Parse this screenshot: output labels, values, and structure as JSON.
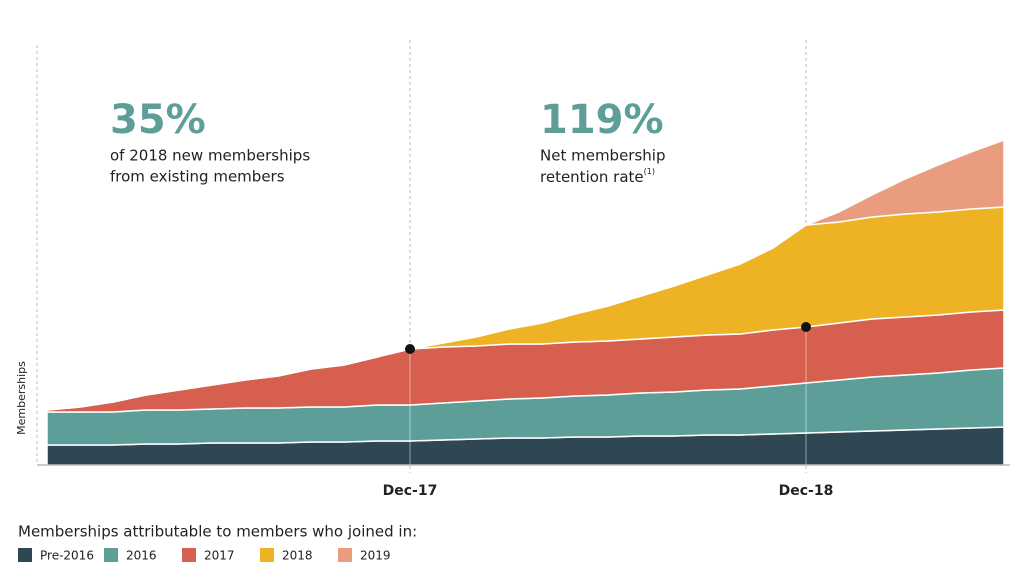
{
  "chart_data": {
    "type": "stacked-area",
    "y_label": "Memberships",
    "legend_title": "Memberships attributable to members who joined in:",
    "categories": [
      null,
      null,
      null,
      null,
      null,
      null,
      null,
      null,
      null,
      null,
      null,
      "Dec-17",
      null,
      null,
      null,
      null,
      null,
      null,
      null,
      null,
      null,
      null,
      null,
      "Dec-18",
      null,
      null,
      null,
      null,
      null,
      null
    ],
    "ylim": [
      0,
      340
    ],
    "series": [
      {
        "name": "Pre-2016",
        "color": "#2f4752",
        "values": [
          20,
          20,
          20,
          21,
          21,
          22,
          22,
          22,
          23,
          23,
          24,
          24,
          25,
          26,
          27,
          27,
          28,
          28,
          29,
          29,
          30,
          30,
          31,
          32,
          33,
          34,
          35,
          36,
          37,
          38
        ]
      },
      {
        "name": "2016",
        "color": "#5e9e99",
        "values": [
          33,
          33,
          33,
          34,
          34,
          34,
          35,
          35,
          35,
          35,
          36,
          36,
          37,
          38,
          39,
          40,
          41,
          42,
          43,
          44,
          45,
          46,
          48,
          50,
          52,
          54,
          55,
          56,
          58,
          59
        ]
      },
      {
        "name": "2017",
        "color": "#d65f4f",
        "values": [
          2,
          5,
          10,
          15,
          20,
          24,
          28,
          32,
          38,
          42,
          48,
          56,
          56,
          55,
          55,
          54,
          54,
          54,
          54,
          55,
          55,
          55,
          56,
          56,
          57,
          58,
          58,
          58,
          58,
          58
        ]
      },
      {
        "name": "2018",
        "color": "#eeb325",
        "values": [
          0,
          0,
          0,
          0,
          0,
          0,
          0,
          0,
          0,
          0,
          0,
          0,
          4,
          9,
          15,
          21,
          28,
          35,
          43,
          51,
          60,
          70,
          82,
          102,
          101,
          102,
          103,
          103,
          103,
          103
        ]
      },
      {
        "name": "2019",
        "color": "#e99c7e",
        "values": [
          0,
          0,
          0,
          0,
          0,
          0,
          0,
          0,
          0,
          0,
          0,
          0,
          0,
          0,
          0,
          0,
          0,
          0,
          0,
          0,
          0,
          0,
          0,
          0,
          10,
          22,
          35,
          47,
          57,
          67
        ]
      }
    ],
    "annotations": [
      {
        "headline": "35%",
        "lines": [
          "of 2018 new memberships",
          "from existing members"
        ]
      },
      {
        "headline": "119%",
        "lines": [
          "Net membership",
          "retention rate"
        ],
        "note": "(1)"
      }
    ]
  }
}
